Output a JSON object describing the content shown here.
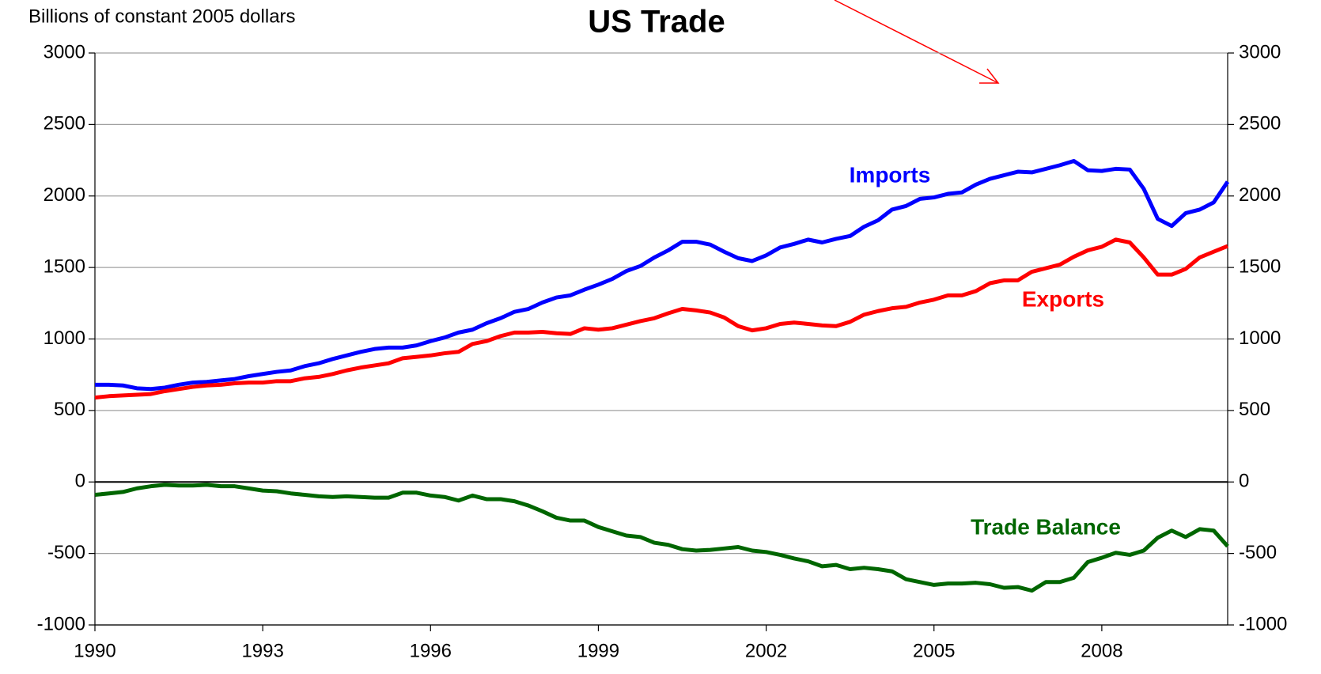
{
  "chart_data": {
    "type": "line",
    "title": "US Trade",
    "y_axis_label": "Billions of constant 2005 dollars",
    "x": [
      1990,
      1990.25,
      1990.5,
      1990.75,
      1991,
      1991.25,
      1991.5,
      1991.75,
      1992,
      1992.25,
      1992.5,
      1992.75,
      1993,
      1993.25,
      1993.5,
      1993.75,
      1994,
      1994.25,
      1994.5,
      1994.75,
      1995,
      1995.25,
      1995.5,
      1995.75,
      1996,
      1996.25,
      1996.5,
      1996.75,
      1997,
      1997.25,
      1997.5,
      1997.75,
      1998,
      1998.25,
      1998.5,
      1998.75,
      1999,
      1999.25,
      1999.5,
      1999.75,
      2000,
      2000.25,
      2000.5,
      2000.75,
      2001,
      2001.25,
      2001.5,
      2001.75,
      2002,
      2002.25,
      2002.5,
      2002.75,
      2003,
      2003.25,
      2003.5,
      2003.75,
      2004,
      2004.25,
      2004.5,
      2004.75,
      2005,
      2005.25,
      2005.5,
      2005.75,
      2006,
      2006.25,
      2006.5,
      2006.75,
      2007,
      2007.25,
      2007.5,
      2007.75,
      2008,
      2008.25,
      2008.5,
      2008.75,
      2009,
      2009.25,
      2009.5,
      2009.75,
      2010,
      2010.25
    ],
    "series": [
      {
        "name": "Imports",
        "color": "#0000ff",
        "values": [
          680,
          680,
          675,
          655,
          650,
          660,
          680,
          695,
          700,
          710,
          720,
          740,
          755,
          770,
          780,
          810,
          830,
          860,
          885,
          910,
          930,
          940,
          940,
          955,
          985,
          1010,
          1045,
          1065,
          1110,
          1145,
          1190,
          1210,
          1255,
          1290,
          1305,
          1345,
          1380,
          1420,
          1475,
          1510,
          1570,
          1620,
          1680,
          1680,
          1660,
          1610,
          1565,
          1545,
          1585,
          1640,
          1665,
          1695,
          1675,
          1700,
          1720,
          1785,
          1830,
          1905,
          1930,
          1980,
          1990,
          2015,
          2025,
          2080,
          2120,
          2145,
          2170,
          2165,
          2190,
          2215,
          2245,
          2180,
          2175,
          2190,
          2185,
          2050,
          1840,
          1790,
          1880,
          1905,
          1955,
          2100
        ]
      },
      {
        "name": "Exports",
        "color": "#ff0000",
        "values": [
          590,
          600,
          605,
          610,
          615,
          635,
          650,
          665,
          675,
          680,
          690,
          695,
          695,
          705,
          705,
          725,
          735,
          755,
          780,
          800,
          815,
          830,
          865,
          875,
          885,
          900,
          910,
          965,
          985,
          1020,
          1045,
          1045,
          1050,
          1040,
          1035,
          1075,
          1065,
          1075,
          1100,
          1125,
          1145,
          1180,
          1210,
          1200,
          1185,
          1150,
          1090,
          1060,
          1075,
          1105,
          1115,
          1105,
          1095,
          1090,
          1120,
          1170,
          1195,
          1215,
          1225,
          1255,
          1275,
          1305,
          1305,
          1335,
          1390,
          1410,
          1410,
          1470,
          1495,
          1520,
          1575,
          1620,
          1645,
          1695,
          1675,
          1570,
          1450,
          1450,
          1490,
          1570,
          1610,
          1650
        ]
      },
      {
        "name": "Trade Balance",
        "color": "#006600",
        "values": [
          -90,
          -80,
          -70,
          -45,
          -30,
          -20,
          -25,
          -25,
          -20,
          -30,
          -30,
          -45,
          -60,
          -65,
          -80,
          -90,
          -100,
          -105,
          -100,
          -105,
          -110,
          -110,
          -75,
          -75,
          -95,
          -105,
          -130,
          -95,
          -120,
          -120,
          -135,
          -165,
          -205,
          -250,
          -270,
          -270,
          -315,
          -345,
          -375,
          -385,
          -425,
          -440,
          -470,
          -480,
          -475,
          -465,
          -455,
          -480,
          -490,
          -510,
          -535,
          -555,
          -590,
          -580,
          -610,
          -600,
          -610,
          -625,
          -680,
          -700,
          -720,
          -710,
          -710,
          -705,
          -715,
          -740,
          -735,
          -760,
          -700,
          -700,
          -670,
          -560,
          -530,
          -495,
          -510,
          -480,
          -390,
          -340,
          -385,
          -330,
          -340,
          -450
        ]
      }
    ],
    "xlim": [
      1990,
      2010.25
    ],
    "xticks": [
      1990,
      1993,
      1996,
      1999,
      2002,
      2005,
      2008
    ],
    "ylim": [
      -1000,
      3000
    ],
    "yticks": [
      -1000,
      -500,
      0,
      500,
      1000,
      1500,
      2000,
      2500,
      3000
    ],
    "y2lim": [
      -1000,
      3000
    ],
    "y2ticks": [
      -1000,
      -500,
      0,
      500,
      1000,
      1500,
      2000,
      2500,
      3000
    ],
    "grid": true
  }
}
